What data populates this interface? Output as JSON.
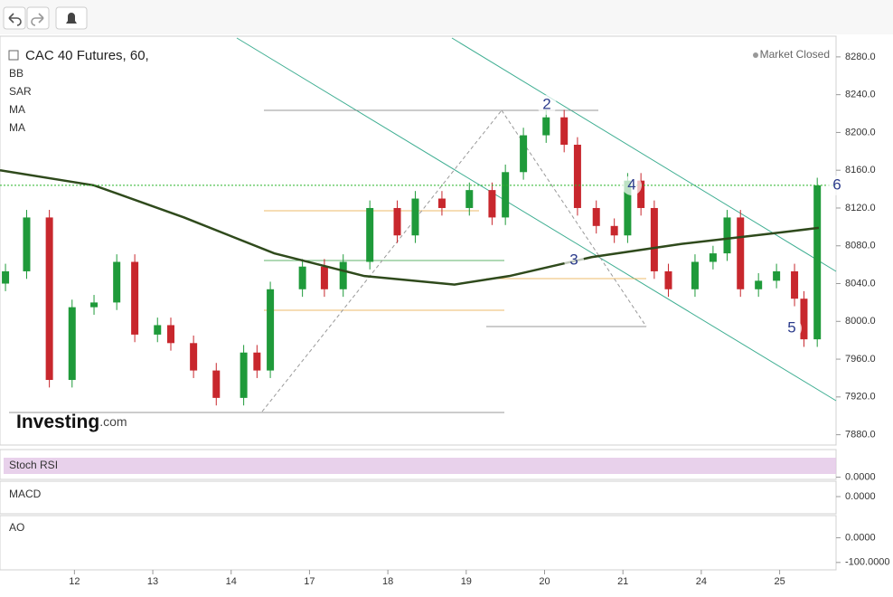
{
  "chart_data": {
    "type": "candlestick",
    "title": "CAC 40 Futures, 60,",
    "status": "Market Closed",
    "indicators": [
      "BB",
      "SAR",
      "MA"
    ],
    "logo": [
      "Investing",
      ".com"
    ],
    "wave_labels": [
      "2",
      "3",
      "4",
      "5",
      "6"
    ],
    "up_color": "#1f9a3a",
    "down_color": "#c8272d",
    "x": [
      0.12,
      0.39,
      0.68,
      0.97,
      1.25,
      1.54,
      1.77,
      2.06,
      2.23,
      2.52,
      2.81,
      3.16,
      3.33,
      3.5,
      3.91,
      4.19,
      4.43,
      4.77,
      5.12,
      5.35,
      5.69,
      6.04,
      6.33,
      6.5,
      6.73,
      7.02,
      7.25,
      7.42,
      7.66,
      7.89,
      8.06,
      8.23,
      8.4,
      8.58,
      8.92,
      9.15,
      9.33,
      9.5,
      9.73,
      9.96,
      10.19,
      10.31,
      10.48
    ],
    "open": [
      8040,
      8053,
      8110,
      7938,
      8015,
      8020,
      8063,
      7986,
      7996,
      7977,
      7948,
      7919,
      7967,
      7948,
      8034,
      8058,
      8034,
      8063,
      8120,
      8091,
      8130,
      8120,
      8139,
      8110,
      8158,
      8197,
      8216,
      8187,
      8120,
      8101,
      8091,
      8149,
      8120,
      8053,
      8034,
      8063,
      8072,
      8110,
      8034,
      8043,
      8053,
      8024,
      7981
    ],
    "close": [
      8053,
      8110,
      7938,
      8015,
      8020,
      8063,
      7986,
      7996,
      7977,
      7948,
      7919,
      7967,
      7948,
      8034,
      8058,
      8034,
      8063,
      8120,
      8091,
      8130,
      8120,
      8139,
      8110,
      8158,
      8197,
      8216,
      8187,
      8120,
      8101,
      8091,
      8149,
      8120,
      8053,
      8034,
      8063,
      8072,
      8110,
      8034,
      8043,
      8053,
      8024,
      7981,
      8144
    ],
    "high": [
      8061,
      8118,
      8118,
      8023,
      8028,
      8071,
      8071,
      8004,
      8004,
      7985,
      7956,
      7975,
      7975,
      8042,
      8066,
      8066,
      8071,
      8128,
      8128,
      8138,
      8138,
      8147,
      8147,
      8166,
      8205,
      8224,
      8224,
      8195,
      8128,
      8109,
      8157,
      8157,
      8128,
      8061,
      8071,
      8080,
      8118,
      8118,
      8051,
      8061,
      8061,
      8032,
      8152
    ],
    "low": [
      8032,
      8045,
      7930,
      7930,
      8007,
      8012,
      7978,
      7978,
      7969,
      7940,
      7911,
      7911,
      7940,
      7940,
      8026,
      8026,
      8026,
      8055,
      8083,
      8083,
      8112,
      8112,
      8102,
      8102,
      8150,
      8189,
      8179,
      8112,
      8093,
      8083,
      8083,
      8112,
      8045,
      8026,
      8026,
      8055,
      8064,
      8026,
      8026,
      8035,
      8016,
      7973,
      7973
    ],
    "series": [
      {
        "name": "MA",
        "color": "#2f4a1c",
        "x": [
          0.05,
          1.25,
          2.4,
          3.55,
          4.7,
          5.85,
          6.55,
          7.6,
          8.75,
          9.9,
          10.5
        ],
        "values": [
          8160,
          8144,
          8110,
          8072,
          8048,
          8039,
          8048,
          8068,
          8082,
          8093,
          8099
        ]
      }
    ],
    "xlim": [
      0.05,
      10.72
    ],
    "ylim": [
      7871,
      8300
    ],
    "xticks": [
      {
        "value": 1,
        "label": "12"
      },
      {
        "value": 2,
        "label": "13"
      },
      {
        "value": 3,
        "label": "14"
      },
      {
        "value": 4,
        "label": "17"
      },
      {
        "value": 5,
        "label": "18"
      },
      {
        "value": 6,
        "label": "19"
      },
      {
        "value": 7,
        "label": "20"
      },
      {
        "value": 8,
        "label": "21"
      },
      {
        "value": 9,
        "label": "24"
      },
      {
        "value": 10,
        "label": "25"
      }
    ],
    "yticks": [
      {
        "value": 7880,
        "label": "7880.0"
      },
      {
        "value": 7920,
        "label": "7920.0"
      },
      {
        "value": 7960,
        "label": "7960.0"
      },
      {
        "value": 8000,
        "label": "8000.0"
      },
      {
        "value": 8040,
        "label": "8040.0"
      },
      {
        "value": 8080,
        "label": "8080.0"
      },
      {
        "value": 8120,
        "label": "8120.0"
      },
      {
        "value": 8160,
        "label": "8160.0"
      },
      {
        "value": 8200,
        "label": "8200.0"
      },
      {
        "value": 8240,
        "label": "8240.0"
      },
      {
        "value": 8280,
        "label": "8280.0"
      }
    ],
    "panels": [
      {
        "name": "Stoch RSI",
        "ylim": [
          -2,
          105
        ],
        "yticks": [
          {
            "value": 0,
            "label": "0.0000"
          }
        ]
      },
      {
        "name": "MACD",
        "ylim": [
          -25,
          25
        ],
        "yticks": [
          {
            "value": 0,
            "label": "0.0000"
          }
        ]
      },
      {
        "name": "AO",
        "ylim": [
          -130,
          90
        ],
        "yticks": [
          {
            "value": 0,
            "label": "0.0000"
          },
          {
            "value": -100,
            "label": "-100.0000"
          }
        ]
      }
    ]
  }
}
